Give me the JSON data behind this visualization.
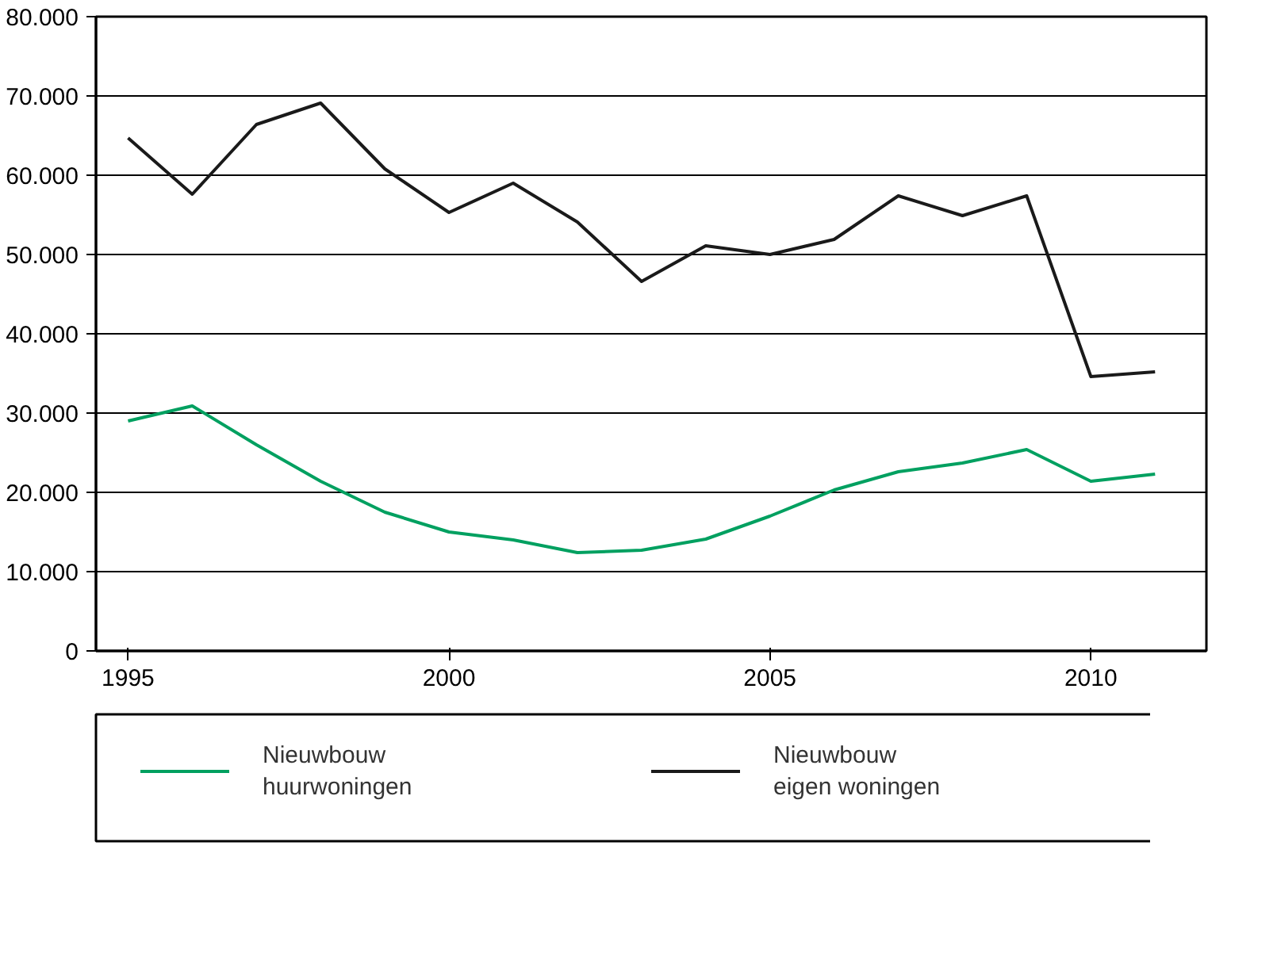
{
  "chart_data": {
    "type": "line",
    "x": [
      1995,
      1996,
      1997,
      1998,
      1999,
      2000,
      2001,
      2002,
      2003,
      2004,
      2005,
      2006,
      2007,
      2008,
      2009,
      2010,
      2011
    ],
    "series": [
      {
        "name": "Nieuwbouw\nhuurwoningen",
        "color": "#00a060",
        "values": [
          29000,
          30900,
          26000,
          21400,
          17500,
          15000,
          14000,
          12400,
          12700,
          14100,
          17000,
          20300,
          22600,
          23700,
          25400,
          21400,
          22300
        ]
      },
      {
        "name": "Nieuwbouw\neigen woningen",
        "color": "#1a1a1a",
        "values": [
          64700,
          57600,
          66400,
          69100,
          60800,
          55300,
          59000,
          54100,
          46600,
          51100,
          50000,
          51900,
          57400,
          54900,
          57400,
          34600,
          35200
        ]
      }
    ],
    "xlim": [
      1994.5,
      2011.8
    ],
    "xticks": [
      1995,
      2000,
      2005,
      2010
    ],
    "ylim": [
      0,
      80000
    ],
    "yticks": [
      0,
      {
        "value": 10000,
        "label": "10.000"
      },
      {
        "value": 20000,
        "label": "20.000"
      },
      {
        "value": 30000,
        "label": "30.000"
      },
      {
        "value": 40000,
        "label": "40.000"
      },
      {
        "value": 50000,
        "label": "50.000"
      },
      {
        "value": 60000,
        "label": "60.000"
      },
      {
        "value": 70000,
        "label": "70.000"
      },
      {
        "value": 80000,
        "label": "80.000"
      }
    ],
    "grid": "y",
    "legend": "bottom"
  }
}
